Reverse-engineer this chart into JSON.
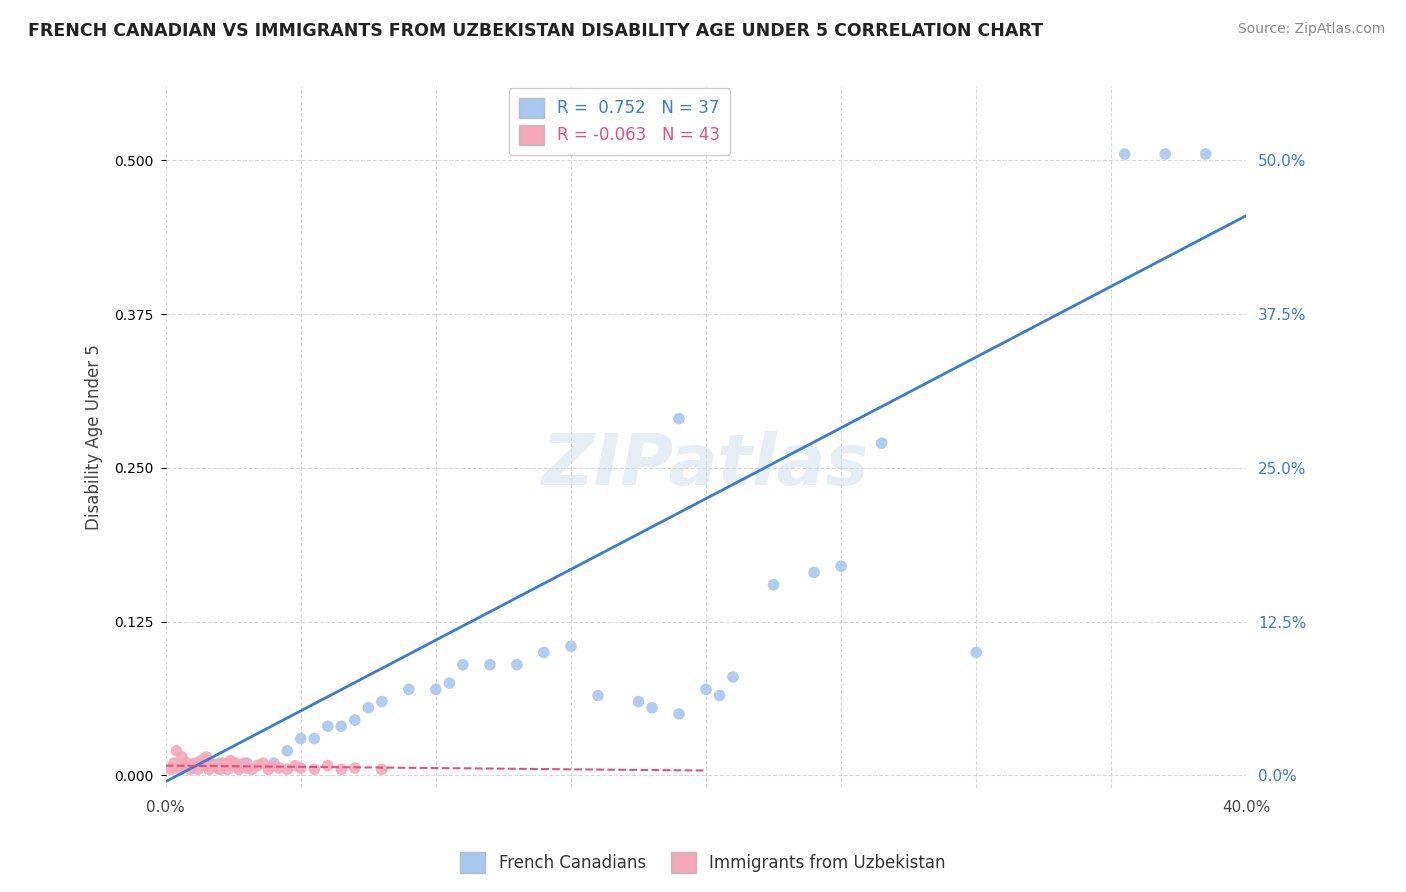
{
  "title": "FRENCH CANADIAN VS IMMIGRANTS FROM UZBEKISTAN DISABILITY AGE UNDER 5 CORRELATION CHART",
  "source": "Source: ZipAtlas.com",
  "ylabel": "Disability Age Under 5",
  "xlim": [
    0.0,
    0.4
  ],
  "ylim": [
    -0.01,
    0.56
  ],
  "ytick_vals": [
    0.0,
    0.125,
    0.25,
    0.375,
    0.5
  ],
  "ytick_labels": [
    "0.0%",
    "12.5%",
    "25.0%",
    "37.5%",
    "50.0%"
  ],
  "xtick_vals": [
    0.0,
    0.05,
    0.1,
    0.15,
    0.2,
    0.25,
    0.3,
    0.35,
    0.4
  ],
  "xtick_labels": [
    "0.0%",
    "",
    "",
    "",
    "",
    "",
    "",
    "",
    "40.0%"
  ],
  "blue_r": 0.752,
  "blue_n": 37,
  "pink_r": -0.063,
  "pink_n": 43,
  "blue_color": "#a8c8f0",
  "pink_color": "#f5a8b8",
  "blue_line_color": "#3a7bd5",
  "pink_line_color": "#e05080",
  "grid_color": "#c8c8c8",
  "blue_x": [
    0.015,
    0.02,
    0.025,
    0.03,
    0.04,
    0.045,
    0.05,
    0.055,
    0.06,
    0.065,
    0.07,
    0.075,
    0.08,
    0.09,
    0.1,
    0.105,
    0.11,
    0.12,
    0.13,
    0.14,
    0.15,
    0.16,
    0.175,
    0.18,
    0.19,
    0.2,
    0.205,
    0.21,
    0.225,
    0.24,
    0.25,
    0.265,
    0.19,
    0.3,
    0.355,
    0.37,
    0.385
  ],
  "blue_y": [
    0.01,
    0.01,
    0.01,
    0.01,
    0.01,
    0.02,
    0.03,
    0.03,
    0.04,
    0.04,
    0.045,
    0.055,
    0.06,
    0.07,
    0.07,
    0.075,
    0.09,
    0.09,
    0.09,
    0.1,
    0.105,
    0.065,
    0.06,
    0.055,
    0.05,
    0.07,
    0.065,
    0.08,
    0.155,
    0.165,
    0.17,
    0.27,
    0.29,
    0.1,
    0.505,
    0.505,
    0.505
  ],
  "pink_x": [
    0.002,
    0.003,
    0.004,
    0.005,
    0.006,
    0.007,
    0.008,
    0.009,
    0.01,
    0.011,
    0.012,
    0.013,
    0.014,
    0.015,
    0.016,
    0.017,
    0.018,
    0.019,
    0.02,
    0.021,
    0.022,
    0.023,
    0.024,
    0.025,
    0.026,
    0.027,
    0.028,
    0.029,
    0.03,
    0.032,
    0.034,
    0.036,
    0.038,
    0.04,
    0.042,
    0.045,
    0.048,
    0.05,
    0.055,
    0.06,
    0.065,
    0.07,
    0.08
  ],
  "pink_y": [
    0.005,
    0.01,
    0.02,
    0.005,
    0.015,
    0.008,
    0.01,
    0.005,
    0.008,
    0.01,
    0.005,
    0.012,
    0.008,
    0.015,
    0.005,
    0.01,
    0.008,
    0.006,
    0.005,
    0.01,
    0.008,
    0.005,
    0.012,
    0.008,
    0.01,
    0.005,
    0.008,
    0.01,
    0.006,
    0.005,
    0.008,
    0.01,
    0.005,
    0.008,
    0.006,
    0.005,
    0.008,
    0.006,
    0.005,
    0.008,
    0.005,
    0.006,
    0.005
  ],
  "blue_line_x": [
    0.0,
    0.4
  ],
  "blue_line_y": [
    -0.005,
    0.455
  ],
  "pink_line_x": [
    0.0,
    0.2
  ],
  "pink_line_y": [
    0.008,
    0.004
  ]
}
